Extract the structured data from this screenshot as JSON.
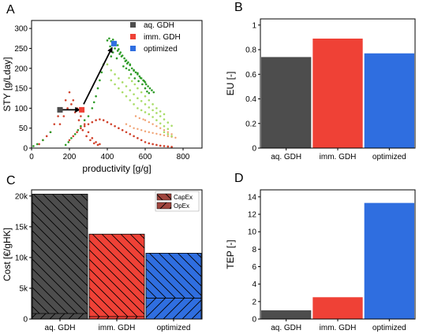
{
  "colors": {
    "aq": "#4d4d4d",
    "imm": "#ef4136",
    "opt": "#2f6ee0",
    "green_dark": "#2e9b27",
    "green_light": "#a8dc67",
    "red_dots": "#d0412b",
    "orange_dots": "#f0a070"
  },
  "chart_data": [
    {
      "panel": "A",
      "type": "scatter",
      "xlabel": "productivity [g/g]",
      "ylabel": "STY [g/Lday]",
      "xlim": [
        0,
        900
      ],
      "ylim": [
        0,
        320
      ],
      "xticks": [
        0,
        200,
        400,
        600,
        800
      ],
      "yticks": [
        0,
        50,
        100,
        150,
        200,
        250,
        300
      ],
      "legend": [
        "aq. GDH",
        "imm. GDH",
        "optimized"
      ],
      "legend_position": "top-right",
      "series": [
        {
          "name": "aq. GDH",
          "x": [
            150
          ],
          "y": [
            96
          ]
        },
        {
          "name": "imm. GDH",
          "x": [
            265
          ],
          "y": [
            96
          ]
        },
        {
          "name": "optimized",
          "x": [
            435
          ],
          "y": [
            262
          ]
        }
      ],
      "background_points": {
        "green_dark": [
          [
            400,
            270
          ],
          [
            410,
            275
          ],
          [
            420,
            268
          ],
          [
            430,
            272
          ],
          [
            445,
            265
          ],
          [
            455,
            258
          ],
          [
            460,
            248
          ],
          [
            470,
            240
          ],
          [
            480,
            232
          ],
          [
            490,
            225
          ],
          [
            500,
            220
          ],
          [
            510,
            215
          ],
          [
            520,
            208
          ],
          [
            530,
            200
          ],
          [
            540,
            196
          ],
          [
            550,
            190
          ],
          [
            560,
            185
          ],
          [
            570,
            180
          ],
          [
            580,
            175
          ],
          [
            590,
            170
          ],
          [
            600,
            165
          ],
          [
            605,
            160
          ],
          [
            615,
            155
          ],
          [
            625,
            150
          ],
          [
            635,
            145
          ],
          [
            645,
            140
          ],
          [
            520,
            210
          ],
          [
            505,
            212
          ],
          [
            495,
            218
          ],
          [
            475,
            230
          ],
          [
            465,
            236
          ],
          [
            455,
            244
          ],
          [
            540,
            194
          ],
          [
            560,
            188
          ],
          [
            575,
            176
          ],
          [
            595,
            168
          ],
          [
            430,
            240
          ],
          [
            420,
            230
          ],
          [
            440,
            250
          ],
          [
            450,
            225
          ],
          [
            415,
            255
          ],
          [
            485,
            205
          ],
          [
            500,
            200
          ],
          [
            515,
            196
          ],
          [
            525,
            185
          ],
          [
            545,
            175
          ],
          [
            565,
            168
          ],
          [
            585,
            160
          ],
          [
            600,
            150
          ],
          [
            610,
            142
          ],
          [
            620,
            138
          ],
          [
            380,
            210
          ],
          [
            370,
            190
          ],
          [
            360,
            170
          ],
          [
            350,
            150
          ],
          [
            340,
            130
          ],
          [
            330,
            115
          ],
          [
            320,
            100
          ],
          [
            300,
            80
          ],
          [
            280,
            70
          ],
          [
            260,
            55
          ],
          [
            245,
            45
          ],
          [
            230,
            35
          ],
          [
            210,
            25
          ],
          [
            195,
            15
          ],
          [
            180,
            8
          ],
          [
            100,
            40
          ],
          [
            60,
            20
          ],
          [
            30,
            10
          ],
          [
            10,
            5
          ]
        ],
        "green_light": [
          [
            400,
            210
          ],
          [
            420,
            195
          ],
          [
            440,
            185
          ],
          [
            460,
            175
          ],
          [
            480,
            165
          ],
          [
            500,
            155
          ],
          [
            520,
            145
          ],
          [
            540,
            135
          ],
          [
            560,
            125
          ],
          [
            580,
            118
          ],
          [
            600,
            110
          ],
          [
            620,
            102
          ],
          [
            640,
            95
          ],
          [
            660,
            88
          ],
          [
            680,
            80
          ],
          [
            700,
            72
          ],
          [
            720,
            64
          ],
          [
            740,
            56
          ],
          [
            580,
            140
          ],
          [
            600,
            130
          ],
          [
            620,
            120
          ],
          [
            640,
            110
          ],
          [
            660,
            100
          ],
          [
            680,
            92
          ],
          [
            700,
            85
          ],
          [
            560,
            150
          ],
          [
            545,
            160
          ],
          [
            530,
            168
          ],
          [
            515,
            176
          ],
          [
            600,
            90
          ],
          [
            620,
            85
          ],
          [
            640,
            78
          ],
          [
            660,
            70
          ],
          [
            680,
            62
          ],
          [
            700,
            55
          ],
          [
            720,
            48
          ],
          [
            520,
            120
          ],
          [
            540,
            110
          ],
          [
            560,
            100
          ],
          [
            580,
            95
          ],
          [
            500,
            130
          ],
          [
            480,
            140
          ],
          [
            460,
            150
          ],
          [
            440,
            160
          ],
          [
            420,
            170
          ],
          [
            700,
            40
          ],
          [
            720,
            35
          ],
          [
            740,
            30
          ]
        ],
        "red_dots": [
          [
            100,
            40
          ],
          [
            120,
            60
          ],
          [
            140,
            80
          ],
          [
            160,
            100
          ],
          [
            180,
            120
          ],
          [
            200,
            140
          ],
          [
            220,
            120
          ],
          [
            240,
            100
          ],
          [
            260,
            80
          ],
          [
            280,
            60
          ],
          [
            300,
            40
          ],
          [
            320,
            25
          ],
          [
            340,
            15
          ],
          [
            360,
            10
          ],
          [
            200,
            20
          ],
          [
            220,
            30
          ],
          [
            240,
            40
          ],
          [
            260,
            50
          ],
          [
            280,
            55
          ],
          [
            300,
            60
          ],
          [
            320,
            65
          ],
          [
            340,
            70
          ],
          [
            360,
            72
          ],
          [
            380,
            70
          ],
          [
            400,
            65
          ],
          [
            420,
            60
          ],
          [
            440,
            55
          ],
          [
            460,
            50
          ],
          [
            480,
            45
          ],
          [
            500,
            40
          ],
          [
            520,
            35
          ],
          [
            540,
            30
          ],
          [
            560,
            25
          ],
          [
            580,
            20
          ],
          [
            600,
            15
          ],
          [
            620,
            12
          ],
          [
            640,
            10
          ],
          [
            660,
            8
          ],
          [
            680,
            6
          ],
          [
            700,
            5
          ],
          [
            720,
            4
          ],
          [
            740,
            3
          ],
          [
            150,
            60
          ],
          [
            170,
            80
          ],
          [
            190,
            100
          ],
          [
            210,
            110
          ],
          [
            230,
            90
          ],
          [
            250,
            70
          ],
          [
            270,
            45
          ],
          [
            290,
            30
          ],
          [
            310,
            20
          ],
          [
            330,
            12
          ],
          [
            350,
            8
          ],
          [
            60,
            20
          ],
          [
            80,
            30
          ],
          [
            40,
            10
          ]
        ],
        "orange_dots": [
          [
            500,
            60
          ],
          [
            520,
            55
          ],
          [
            540,
            50
          ],
          [
            560,
            48
          ],
          [
            580,
            45
          ],
          [
            600,
            42
          ],
          [
            620,
            40
          ],
          [
            640,
            38
          ],
          [
            660,
            36
          ],
          [
            680,
            34
          ],
          [
            700,
            32
          ],
          [
            720,
            30
          ],
          [
            740,
            28
          ],
          [
            760,
            26
          ],
          [
            600,
            70
          ],
          [
            620,
            65
          ],
          [
            640,
            60
          ],
          [
            660,
            55
          ],
          [
            680,
            50
          ],
          [
            700,
            45
          ],
          [
            720,
            40
          ],
          [
            740,
            35
          ],
          [
            550,
            80
          ],
          [
            570,
            75
          ],
          [
            590,
            72
          ]
        ]
      },
      "arrows": [
        {
          "from": [
            160,
            96
          ],
          "to": [
            255,
            96
          ]
        },
        {
          "from": [
            275,
            110
          ],
          "to": [
            425,
            252
          ]
        }
      ]
    },
    {
      "panel": "B",
      "type": "bar",
      "categories": [
        "aq. GDH",
        "imm. GDH",
        "optimized"
      ],
      "values": [
        0.74,
        0.89,
        0.77
      ],
      "ylabel": "EU [-]",
      "ylim": [
        0,
        1.05
      ],
      "yticks": [
        0,
        0.2,
        0.4,
        0.6,
        0.8,
        1
      ]
    },
    {
      "panel": "C",
      "type": "bar",
      "stacked": true,
      "categories": [
        "aq. GDH",
        "imm. GDH",
        "optimized"
      ],
      "ylabel": "Cost [€/gHK]",
      "ylim": [
        0,
        21000
      ],
      "yticks": [
        0,
        5000,
        10000,
        15000,
        20000
      ],
      "ytick_labels": [
        "0",
        "5k",
        "10k",
        "15k",
        "20k"
      ],
      "legend": [
        "CapEx",
        "OpEx"
      ],
      "legend_position": "top-right",
      "series": [
        {
          "name": "CapEx",
          "values": [
            900,
            400,
            3400
          ]
        },
        {
          "name": "OpEx",
          "values": [
            19400,
            13400,
            7300
          ]
        }
      ]
    },
    {
      "panel": "D",
      "type": "bar",
      "categories": [
        "aq. GDH",
        "imm. GDH",
        "optimized"
      ],
      "values": [
        1.0,
        2.5,
        13.3
      ],
      "ylabel": "TEP [-]",
      "ylim": [
        0,
        14.8
      ],
      "yticks": [
        0,
        2,
        4,
        6,
        8,
        10,
        12,
        14
      ]
    }
  ]
}
